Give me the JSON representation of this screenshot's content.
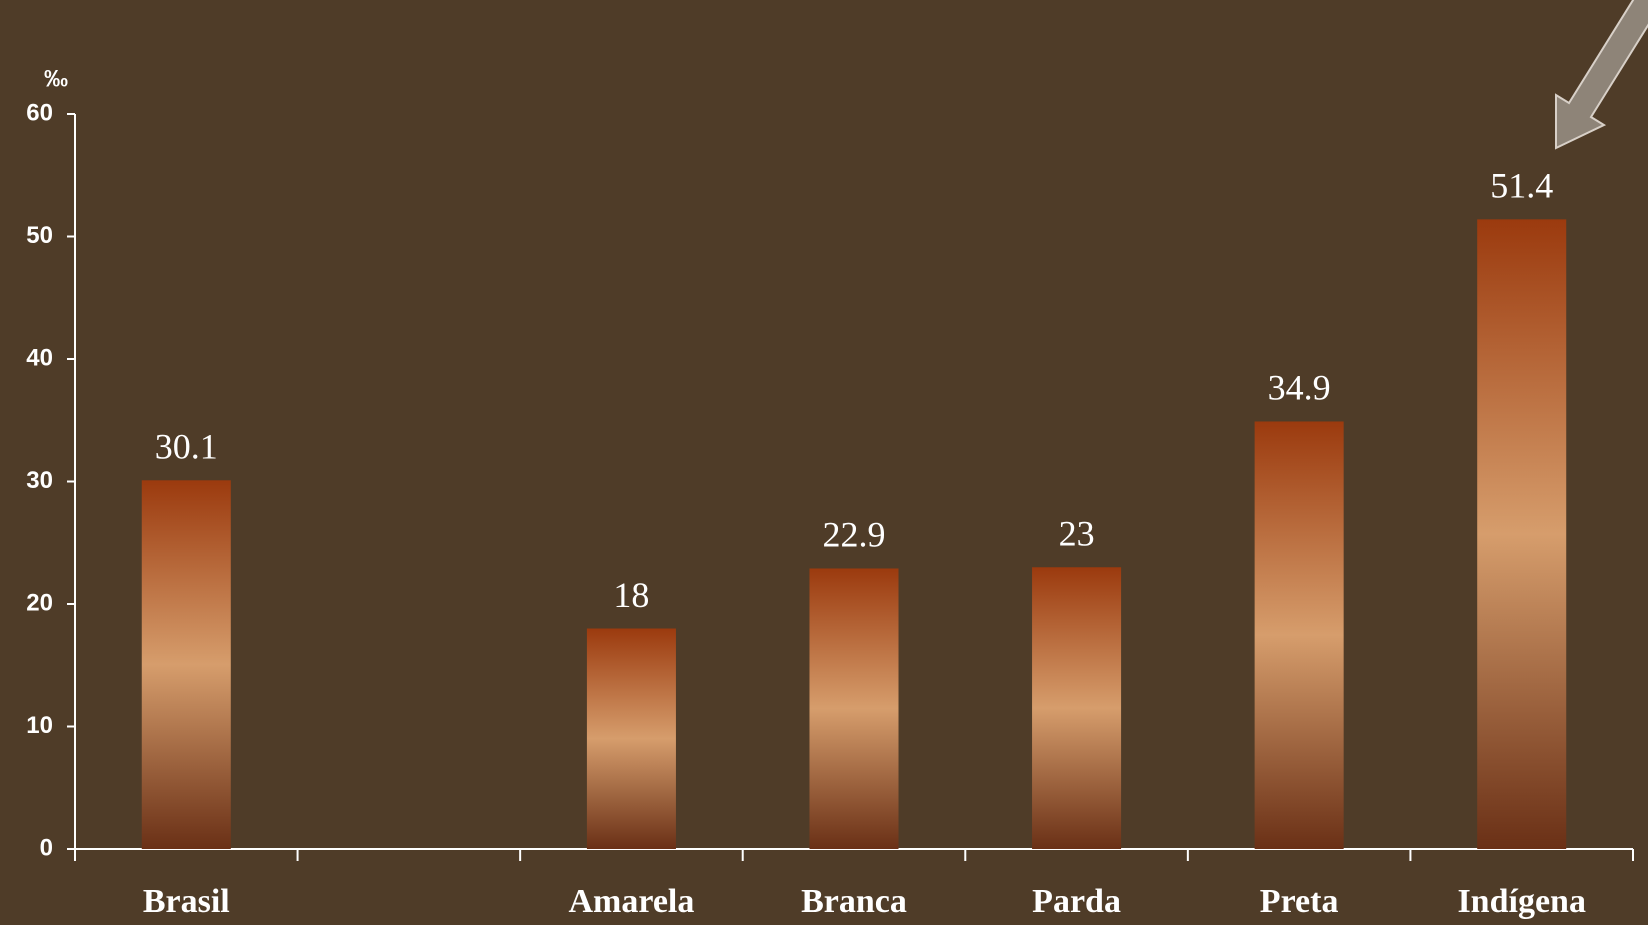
{
  "chart_data": {
    "type": "bar",
    "y_unit": "‰",
    "categories": [
      "Brasil",
      null,
      "Amarela",
      "Branca",
      "Parda",
      "Preta",
      "Indígena"
    ],
    "values": [
      30.1,
      null,
      18,
      22.9,
      23,
      34.9,
      51.4
    ],
    "ylim": [
      0,
      60
    ],
    "yticks": [
      0,
      10,
      20,
      30,
      40,
      50,
      60
    ],
    "grid": false
  }
}
